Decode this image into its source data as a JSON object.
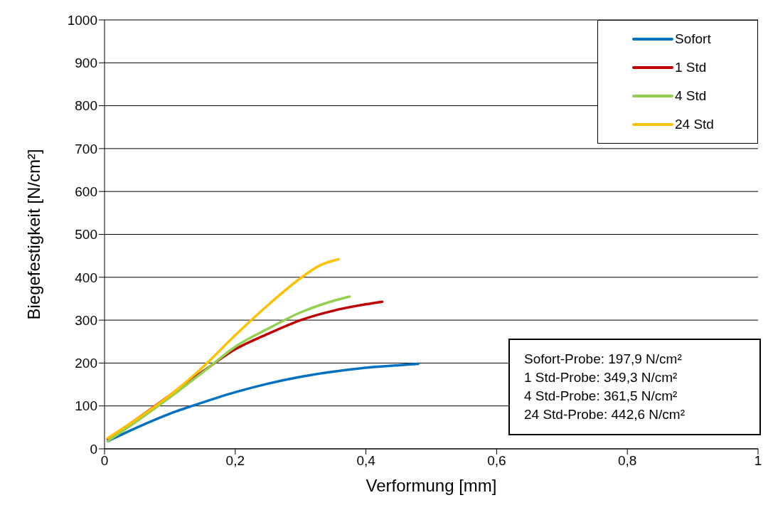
{
  "chart_data": {
    "type": "line",
    "xlabel": "Verformung [mm]",
    "ylabel": "Biegefestigkeit [N/cm²]",
    "xlim": [
      0,
      1
    ],
    "xticks": [
      0,
      {
        "value": 0.2,
        "label": "0,2"
      },
      {
        "value": 0.4,
        "label": "0,4"
      },
      {
        "value": 0.6,
        "label": "0,6"
      },
      {
        "value": 0.8,
        "label": "0,8"
      },
      1
    ],
    "ylim": [
      0,
      1000
    ],
    "yticks": [
      0,
      100,
      200,
      300,
      400,
      500,
      600,
      700,
      800,
      900,
      1000
    ],
    "grid": "y",
    "legend": "top right",
    "marker": "none",
    "line_style": "solid",
    "series": [
      {
        "name": "Sofort",
        "color": "#0070c0",
        "x": [
          0.005,
          0.05,
          0.1,
          0.15,
          0.2,
          0.25,
          0.3,
          0.35,
          0.4,
          0.45,
          0.48
        ],
        "values": [
          18,
          50,
          82,
          108,
          132,
          152,
          168,
          180,
          189,
          195,
          198
        ]
      },
      {
        "name": "1 Std",
        "color": "#c00000",
        "x": [
          0.005,
          0.05,
          0.1,
          0.15,
          0.2,
          0.25,
          0.3,
          0.35,
          0.4,
          0.425
        ],
        "values": [
          22,
          70,
          125,
          180,
          232,
          268,
          300,
          322,
          337,
          343
        ]
      },
      {
        "name": "4 Std",
        "color": "#92d050",
        "x": [
          0.005,
          0.05,
          0.1,
          0.15,
          0.2,
          0.25,
          0.3,
          0.35,
          0.375
        ],
        "values": [
          18,
          65,
          120,
          178,
          238,
          280,
          318,
          345,
          355
        ]
      },
      {
        "name": "24 Std",
        "color": "#ffc000",
        "x": [
          0.005,
          0.05,
          0.1,
          0.15,
          0.2,
          0.25,
          0.3,
          0.33,
          0.358
        ],
        "values": [
          25,
          70,
          125,
          190,
          265,
          335,
          398,
          428,
          442
        ]
      }
    ],
    "annotations": [
      "Sofort-Probe: 197,9 N/cm²",
      "1 Std-Probe: 349,3 N/cm²",
      "4 Std-Probe: 361,5 N/cm²",
      "24 Std-Probe: 442,6 N/cm²"
    ]
  }
}
